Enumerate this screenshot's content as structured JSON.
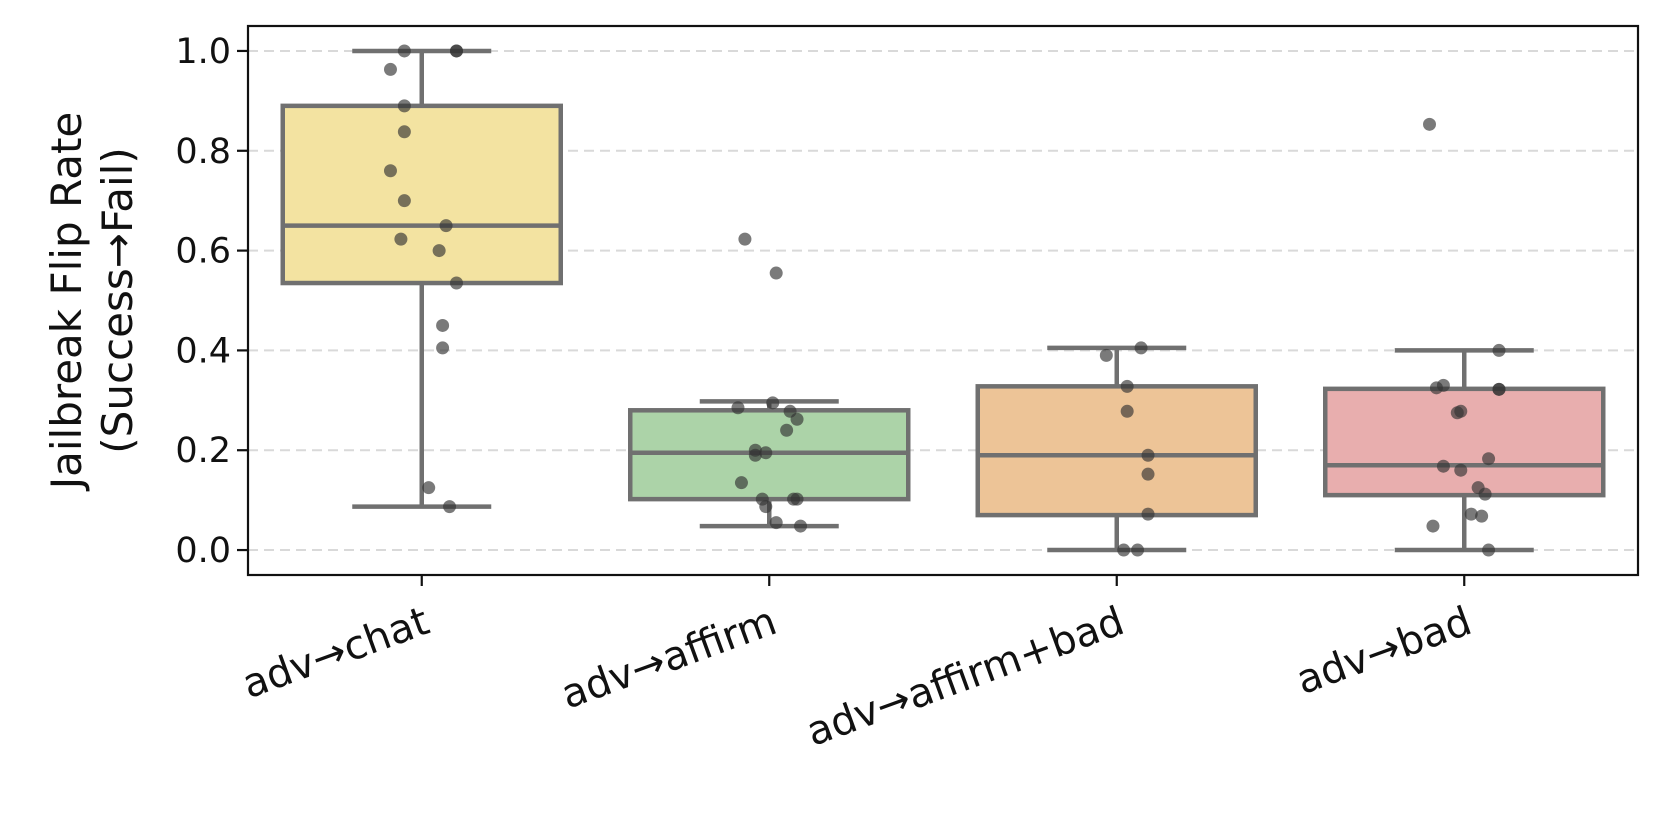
{
  "chart_data": {
    "type": "box",
    "ylabel_lines": [
      "Jailbreak Flip Rate",
      "(Success→Fail)"
    ],
    "ylim": [
      -0.05,
      1.05
    ],
    "yticks": [
      0.0,
      0.2,
      0.4,
      0.6,
      0.8,
      1.0
    ],
    "ytick_labels": [
      "0.0",
      "0.2",
      "0.4",
      "0.6",
      "0.8",
      "1.0"
    ],
    "grid": "horizontal-dashed",
    "categories": [
      "adv→chat",
      "adv→affirm",
      "adv→affirm+bad",
      "adv→bad"
    ],
    "colors": [
      "#f3e3a1",
      "#acd3a8",
      "#edc497",
      "#e8aeae"
    ],
    "box_edge_color": "#707070",
    "boxes": [
      {
        "category": "adv→chat",
        "q1": 0.535,
        "median": 0.65,
        "q3": 0.89,
        "whisker_low": 0.087,
        "whisker_high": 1.0
      },
      {
        "category": "adv→affirm",
        "q1": 0.102,
        "median": 0.195,
        "q3": 0.28,
        "whisker_low": 0.048,
        "whisker_high": 0.298
      },
      {
        "category": "adv→affirm+bad",
        "q1": 0.07,
        "median": 0.19,
        "q3": 0.328,
        "whisker_low": 0.0,
        "whisker_high": 0.405
      },
      {
        "category": "adv→bad",
        "q1": 0.11,
        "median": 0.17,
        "q3": 0.323,
        "whisker_low": 0.0,
        "whisker_high": 0.4
      }
    ],
    "points": [
      {
        "category": "adv→chat",
        "jitter": [
          -0.05,
          0.1,
          0.1,
          -0.09,
          -0.05,
          -0.05,
          -0.09,
          -0.05,
          0.07,
          -0.06,
          0.05,
          0.1,
          0.06,
          0.06,
          0.02,
          0.08
        ],
        "values": [
          1.0,
          1.0,
          1.0,
          0.963,
          0.89,
          0.838,
          0.76,
          0.7,
          0.65,
          0.623,
          0.6,
          0.535,
          0.45,
          0.405,
          0.125,
          0.087
        ]
      },
      {
        "category": "adv→affirm",
        "jitter": [
          -0.07,
          0.02,
          -0.09,
          0.01,
          0.06,
          0.08,
          0.05,
          -0.04,
          -0.01,
          -0.04,
          -0.08,
          -0.02,
          0.08,
          0.07,
          -0.01,
          0.02,
          0.09
        ],
        "values": [
          0.623,
          0.555,
          0.285,
          0.295,
          0.278,
          0.262,
          0.24,
          0.2,
          0.195,
          0.19,
          0.135,
          0.102,
          0.102,
          0.102,
          0.087,
          0.055,
          0.048
        ]
      },
      {
        "category": "adv→affirm+bad",
        "jitter": [
          -0.03,
          0.07,
          0.03,
          0.03,
          0.09,
          0.09,
          0.09,
          0.02,
          0.06
        ],
        "values": [
          0.39,
          0.405,
          0.328,
          0.278,
          0.19,
          0.152,
          0.072,
          0.0,
          0.0
        ]
      },
      {
        "category": "adv→bad",
        "jitter": [
          -0.1,
          0.1,
          0.1,
          -0.08,
          -0.06,
          0.1,
          -0.01,
          -0.02,
          0.07,
          -0.06,
          -0.01,
          0.04,
          0.06,
          0.02,
          0.05,
          -0.09,
          0.07
        ],
        "values": [
          0.853,
          0.4,
          0.322,
          0.325,
          0.33,
          0.322,
          0.278,
          0.275,
          0.183,
          0.168,
          0.16,
          0.125,
          0.112,
          0.072,
          0.068,
          0.048,
          0.0
        ]
      }
    ]
  }
}
